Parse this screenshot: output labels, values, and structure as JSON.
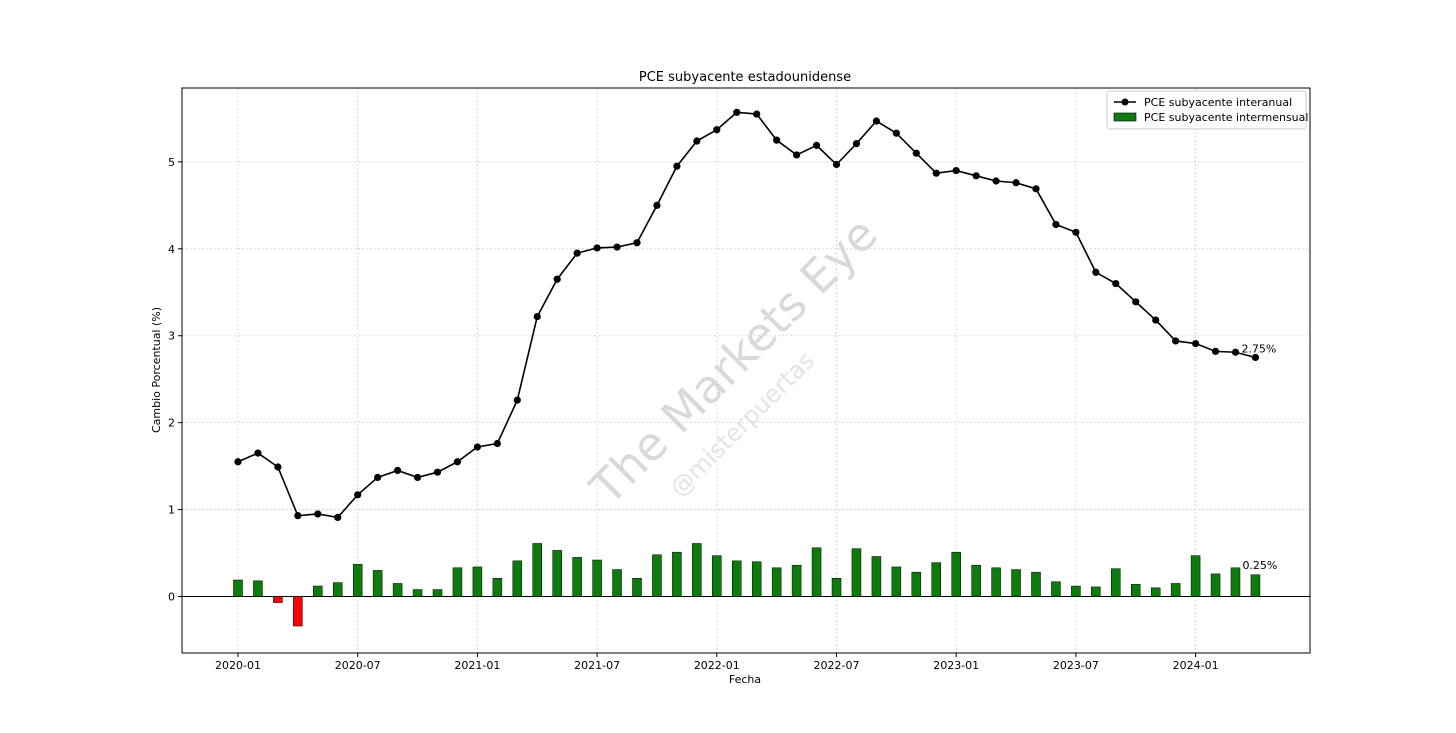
{
  "chart_data": {
    "type": "bar",
    "title": "PCE subyacente estadounidense",
    "xlabel": "Fecha",
    "ylabel": "Cambio Porcentual (%)",
    "ylim": [
      -0.65,
      5.85
    ],
    "y_ticks": [
      0,
      1,
      2,
      3,
      4,
      5
    ],
    "x_tick_labels": [
      "2020-01",
      "2020-07",
      "2021-01",
      "2021-07",
      "2022-01",
      "2022-07",
      "2023-01",
      "2023-07",
      "2024-01"
    ],
    "grid": true,
    "legend_position": "top-right",
    "x": [
      "2020-01",
      "2020-02",
      "2020-03",
      "2020-04",
      "2020-05",
      "2020-06",
      "2020-07",
      "2020-08",
      "2020-09",
      "2020-10",
      "2020-11",
      "2020-12",
      "2021-01",
      "2021-02",
      "2021-03",
      "2021-04",
      "2021-05",
      "2021-06",
      "2021-07",
      "2021-08",
      "2021-09",
      "2021-10",
      "2021-11",
      "2021-12",
      "2022-01",
      "2022-02",
      "2022-03",
      "2022-04",
      "2022-05",
      "2022-06",
      "2022-07",
      "2022-08",
      "2022-09",
      "2022-10",
      "2022-11",
      "2022-12",
      "2023-01",
      "2023-02",
      "2023-03",
      "2023-04",
      "2023-05",
      "2023-06",
      "2023-07",
      "2023-08",
      "2023-09",
      "2023-10",
      "2023-11",
      "2023-12",
      "2024-01",
      "2024-02",
      "2024-03",
      "2024-04"
    ],
    "series": [
      {
        "name": "PCE subyacente interanual",
        "kind": "line",
        "color": "#000000",
        "marker": "circle",
        "values": [
          1.55,
          1.65,
          1.49,
          0.93,
          0.95,
          0.91,
          1.17,
          1.37,
          1.45,
          1.37,
          1.43,
          1.55,
          1.72,
          1.76,
          2.26,
          3.22,
          3.65,
          3.95,
          4.01,
          4.02,
          4.07,
          4.5,
          4.95,
          5.24,
          5.37,
          5.57,
          5.55,
          5.25,
          5.08,
          5.19,
          4.97,
          5.21,
          5.47,
          5.33,
          5.1,
          4.87,
          4.9,
          4.84,
          4.78,
          4.76,
          4.69,
          4.28,
          4.19,
          3.73,
          3.6,
          3.39,
          3.18,
          2.94,
          2.91,
          2.82,
          2.81,
          2.75
        ],
        "end_label": "2.75%"
      },
      {
        "name": "PCE subyacente intermensual",
        "kind": "bar",
        "color": "#0a7d0a",
        "negative_color": "#ff0000",
        "values": [
          0.19,
          0.18,
          -0.07,
          -0.34,
          0.12,
          0.16,
          0.37,
          0.3,
          0.15,
          0.08,
          0.08,
          0.33,
          0.34,
          0.21,
          0.41,
          0.61,
          0.53,
          0.45,
          0.42,
          0.31,
          0.21,
          0.48,
          0.51,
          0.61,
          0.47,
          0.41,
          0.4,
          0.33,
          0.36,
          0.56,
          0.21,
          0.55,
          0.46,
          0.34,
          0.28,
          0.39,
          0.51,
          0.36,
          0.33,
          0.31,
          0.28,
          0.17,
          0.12,
          0.11,
          0.32,
          0.14,
          0.1,
          0.15,
          0.47,
          0.26,
          0.33,
          0.25
        ],
        "end_label": "0.25%"
      }
    ]
  },
  "watermark": {
    "main": "The Markets Eye",
    "handle": "@misterpuertas"
  }
}
